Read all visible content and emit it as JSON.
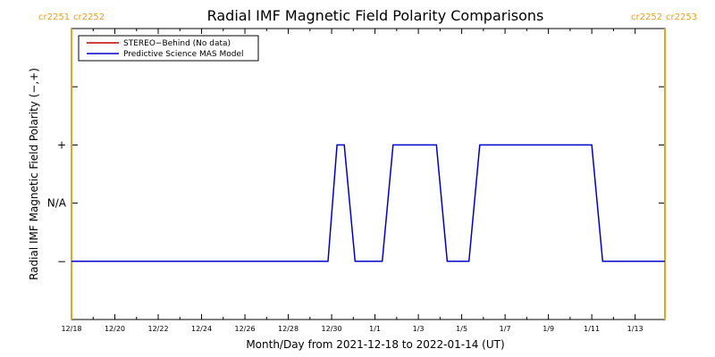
{
  "chart_data": {
    "type": "line",
    "title": "Radial IMF Magnetic Field Polarity Comparisons",
    "xlabel": "Month/Day from 2021-12-18 to 2022-01-14 (UT)",
    "ylabel": "Radial IMF Magnetic Field Polarity (−,+)",
    "x_start": "2021-12-18",
    "x_end": "2022-01-14",
    "xlim": [
      "2021-12-18",
      "2022-01-14T09:00"
    ],
    "ylim": [
      -2,
      3
    ],
    "x_ticks": [
      {
        "label": "12/18",
        "date": "2021-12-18"
      },
      {
        "label": "12/20",
        "date": "2021-12-20"
      },
      {
        "label": "12/22",
        "date": "2021-12-22"
      },
      {
        "label": "12/24",
        "date": "2021-12-24"
      },
      {
        "label": "12/26",
        "date": "2021-12-26"
      },
      {
        "label": "12/28",
        "date": "2021-12-28"
      },
      {
        "label": "12/30",
        "date": "2021-12-30"
      },
      {
        "label": "1/1",
        "date": "2022-01-01"
      },
      {
        "label": "1/3",
        "date": "2022-01-03"
      },
      {
        "label": "1/5",
        "date": "2022-01-05"
      },
      {
        "label": "1/7",
        "date": "2022-01-07"
      },
      {
        "label": "1/9",
        "date": "2022-01-09"
      },
      {
        "label": "1/11",
        "date": "2022-01-11"
      },
      {
        "label": "1/13",
        "date": "2022-01-13"
      }
    ],
    "y_ticks": [
      {
        "label": "+",
        "value": 1
      },
      {
        "label": "N/A",
        "value": 0
      },
      {
        "label": "−",
        "value": -1
      }
    ],
    "carrington_markers": [
      {
        "left_label": "cr2251",
        "right_label": "cr2252",
        "date": "2021-12-18"
      },
      {
        "left_label": "cr2252",
        "right_label": "cr2253",
        "date": "2022-01-14T09:00"
      }
    ],
    "legend_position": "top-left",
    "series": [
      {
        "name": "STEREO−Behind (No data)",
        "color": "#c00000",
        "x": [],
        "y": []
      },
      {
        "name": "Predictive Science MAS Model",
        "color": "#0000cc",
        "x": [
          "2021-12-18T00:00",
          "2021-12-29T20:00",
          "2021-12-30T06:00",
          "2021-12-30T14:00",
          "2021-12-31T02:00",
          "2022-01-01T08:00",
          "2022-01-01T20:00",
          "2022-01-03T20:00",
          "2022-01-04T08:00",
          "2022-01-05T08:00",
          "2022-01-05T20:00",
          "2022-01-11T00:00",
          "2022-01-11T12:00",
          "2022-01-14T09:00"
        ],
        "y": [
          -1,
          -1,
          1,
          1,
          -1,
          -1,
          1,
          1,
          -1,
          -1,
          1,
          1,
          -1,
          -1
        ]
      }
    ]
  }
}
